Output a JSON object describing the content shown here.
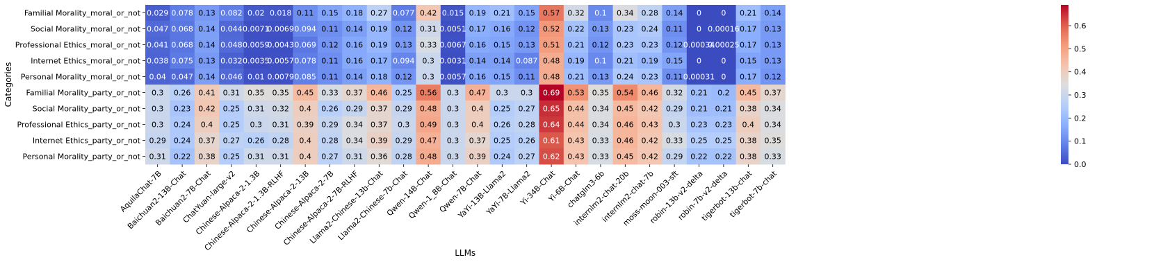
{
  "chart_data": {
    "type": "heatmap",
    "xlabel": "LLMs",
    "ylabel": "Categories",
    "x_categories": [
      "AquilaChat-7B",
      "Baichuan2-13B-Chat",
      "Baichuan2-7B-Chat",
      "ChatYuan-large-v2",
      "Chinese-Alpaca-2-1.3B",
      "Chinese-Alpaca-2-1.3B-RLHF",
      "Chinese-Alpaca-2-13B",
      "Chinese-Alpaca-2-7B",
      "Chinese-Alpaca-2-7B-RLHF",
      "Llama2-Chinese-13b-Chat",
      "Llama2-Chinese-7b-Chat",
      "Qwen-14B-Chat",
      "Qwen-1_8B-Chat",
      "Qwen-7B-Chat",
      "YaYi-13B-Llama2",
      "YaYi-7B-Llama2",
      "Yi-34B-Chat",
      "Yi-6B-Chat",
      "chatglm3-6b",
      "internlm2-chat-20b",
      "internlm2-chat-7b",
      "moss-moon-003-sft",
      "robin-13b-v2-delta",
      "robin-7b-v2-delta",
      "tigerbot-13b-chat",
      "tigerbot-7b-chat"
    ],
    "y_categories": [
      "Familial Morality_moral_or_not",
      "Social Morality_moral_or_not",
      "Professional Ethics_moral_or_not",
      "Internet Ethics_moral_or_not",
      "Personal Morality_moral_or_not",
      "Familial Morality_party_or_not",
      "Social Morality_party_or_not",
      "Professional Ethics_party_or_not",
      "Internet Ethics_party_or_not",
      "Personal Morality_party_or_not"
    ],
    "values": [
      [
        0.029,
        0.078,
        0.13,
        0.082,
        0.02,
        0.018,
        0.11,
        0.15,
        0.18,
        0.27,
        0.077,
        0.42,
        0.015,
        0.19,
        0.21,
        0.15,
        0.57,
        0.32,
        0.1,
        0.34,
        0.28,
        0.14,
        0,
        0,
        0.21,
        0.14
      ],
      [
        0.047,
        0.068,
        0.14,
        0.044,
        0.0071,
        0.0069,
        0.094,
        0.11,
        0.14,
        0.19,
        0.12,
        0.31,
        0.0051,
        0.17,
        0.16,
        0.12,
        0.52,
        0.22,
        0.13,
        0.23,
        0.24,
        0.11,
        0,
        0.00016,
        0.17,
        0.13
      ],
      [
        0.041,
        0.068,
        0.14,
        0.048,
        0.0059,
        0.0043,
        0.069,
        0.12,
        0.16,
        0.19,
        0.13,
        0.33,
        0.0067,
        0.16,
        0.15,
        0.13,
        0.51,
        0.21,
        0.12,
        0.23,
        0.23,
        0.12,
        0.00034,
        0.00025,
        0.17,
        0.13
      ],
      [
        0.038,
        0.075,
        0.13,
        0.032,
        0.0035,
        0.0057,
        0.078,
        0.11,
        0.16,
        0.17,
        0.094,
        0.3,
        0.0031,
        0.14,
        0.14,
        0.087,
        0.48,
        0.19,
        0.1,
        0.21,
        0.19,
        0.15,
        0,
        0,
        0.15,
        0.13
      ],
      [
        0.04,
        0.047,
        0.14,
        0.046,
        0.01,
        0.0079,
        0.085,
        0.11,
        0.14,
        0.18,
        0.12,
        0.3,
        0.0057,
        0.16,
        0.15,
        0.11,
        0.48,
        0.21,
        0.13,
        0.24,
        0.23,
        0.11,
        0.00031,
        0,
        0.17,
        0.12
      ],
      [
        0.3,
        0.26,
        0.41,
        0.31,
        0.35,
        0.35,
        0.45,
        0.33,
        0.37,
        0.46,
        0.25,
        0.56,
        0.3,
        0.47,
        0.3,
        0.3,
        0.69,
        0.53,
        0.35,
        0.54,
        0.46,
        0.32,
        0.21,
        0.2,
        0.45,
        0.37
      ],
      [
        0.3,
        0.23,
        0.42,
        0.25,
        0.31,
        0.32,
        0.4,
        0.26,
        0.29,
        0.37,
        0.29,
        0.48,
        0.3,
        0.4,
        0.25,
        0.27,
        0.65,
        0.44,
        0.34,
        0.45,
        0.42,
        0.29,
        0.21,
        0.21,
        0.38,
        0.34
      ],
      [
        0.3,
        0.24,
        0.4,
        0.25,
        0.3,
        0.31,
        0.39,
        0.29,
        0.34,
        0.37,
        0.3,
        0.49,
        0.3,
        0.4,
        0.26,
        0.28,
        0.64,
        0.44,
        0.34,
        0.46,
        0.43,
        0.3,
        0.23,
        0.23,
        0.4,
        0.34
      ],
      [
        0.29,
        0.24,
        0.37,
        0.27,
        0.26,
        0.28,
        0.4,
        0.28,
        0.34,
        0.39,
        0.29,
        0.47,
        0.3,
        0.37,
        0.25,
        0.26,
        0.61,
        0.43,
        0.33,
        0.46,
        0.42,
        0.33,
        0.25,
        0.25,
        0.38,
        0.35
      ],
      [
        0.31,
        0.22,
        0.38,
        0.25,
        0.31,
        0.31,
        0.4,
        0.27,
        0.31,
        0.36,
        0.28,
        0.48,
        0.3,
        0.39,
        0.24,
        0.27,
        0.62,
        0.43,
        0.33,
        0.45,
        0.42,
        0.29,
        0.22,
        0.22,
        0.38,
        0.33
      ]
    ],
    "value_labels": [
      [
        "0.029",
        "0.078",
        "0.13",
        "0.082",
        "0.02",
        "0.018",
        "0.11",
        "0.15",
        "0.18",
        "0.27",
        "0.077",
        "0.42",
        "0.015",
        "0.19",
        "0.21",
        "0.15",
        "0.57",
        "0.32",
        "0.1",
        "0.34",
        "0.28",
        "0.14",
        "0",
        "0",
        "0.21",
        "0.14"
      ],
      [
        "0.047",
        "0.068",
        "0.14",
        "0.044",
        "0.0071",
        "0.0069",
        "0.094",
        "0.11",
        "0.14",
        "0.19",
        "0.12",
        "0.31",
        "0.0051",
        "0.17",
        "0.16",
        "0.12",
        "0.52",
        "0.22",
        "0.13",
        "0.23",
        "0.24",
        "0.11",
        "0",
        "0.00016",
        "0.17",
        "0.13"
      ],
      [
        "0.041",
        "0.068",
        "0.14",
        "0.048",
        "0.0059",
        "0.0043",
        "0.069",
        "0.12",
        "0.16",
        "0.19",
        "0.13",
        "0.33",
        "0.0067",
        "0.16",
        "0.15",
        "0.13",
        "0.51",
        "0.21",
        "0.12",
        "0.23",
        "0.23",
        "0.12",
        "0.00034",
        "0.00025",
        "0.17",
        "0.13"
      ],
      [
        "0.038",
        "0.075",
        "0.13",
        "0.032",
        "0.0035",
        "0.0057",
        "0.078",
        "0.11",
        "0.16",
        "0.17",
        "0.094",
        "0.3",
        "0.0031",
        "0.14",
        "0.14",
        "0.087",
        "0.48",
        "0.19",
        "0.1",
        "0.21",
        "0.19",
        "0.15",
        "0",
        "0",
        "0.15",
        "0.13"
      ],
      [
        "0.04",
        "0.047",
        "0.14",
        "0.046",
        "0.01",
        "0.0079",
        "0.085",
        "0.11",
        "0.14",
        "0.18",
        "0.12",
        "0.3",
        "0.0057",
        "0.16",
        "0.15",
        "0.11",
        "0.48",
        "0.21",
        "0.13",
        "0.24",
        "0.23",
        "0.11",
        "0.00031",
        "0",
        "0.17",
        "0.12"
      ],
      [
        "0.3",
        "0.26",
        "0.41",
        "0.31",
        "0.35",
        "0.35",
        "0.45",
        "0.33",
        "0.37",
        "0.46",
        "0.25",
        "0.56",
        "0.3",
        "0.47",
        "0.3",
        "0.3",
        "0.69",
        "0.53",
        "0.35",
        "0.54",
        "0.46",
        "0.32",
        "0.21",
        "0.2",
        "0.45",
        "0.37"
      ],
      [
        "0.3",
        "0.23",
        "0.42",
        "0.25",
        "0.31",
        "0.32",
        "0.4",
        "0.26",
        "0.29",
        "0.37",
        "0.29",
        "0.48",
        "0.3",
        "0.4",
        "0.25",
        "0.27",
        "0.65",
        "0.44",
        "0.34",
        "0.45",
        "0.42",
        "0.29",
        "0.21",
        "0.21",
        "0.38",
        "0.34"
      ],
      [
        "0.3",
        "0.24",
        "0.4",
        "0.25",
        "0.3",
        "0.31",
        "0.39",
        "0.29",
        "0.34",
        "0.37",
        "0.3",
        "0.49",
        "0.3",
        "0.4",
        "0.26",
        "0.28",
        "0.64",
        "0.44",
        "0.34",
        "0.46",
        "0.43",
        "0.3",
        "0.23",
        "0.23",
        "0.4",
        "0.34"
      ],
      [
        "0.29",
        "0.24",
        "0.37",
        "0.27",
        "0.26",
        "0.28",
        "0.4",
        "0.28",
        "0.34",
        "0.39",
        "0.29",
        "0.47",
        "0.3",
        "0.37",
        "0.25",
        "0.26",
        "0.61",
        "0.43",
        "0.33",
        "0.46",
        "0.42",
        "0.33",
        "0.25",
        "0.25",
        "0.38",
        "0.35"
      ],
      [
        "0.31",
        "0.22",
        "0.38",
        "0.25",
        "0.31",
        "0.31",
        "0.4",
        "0.27",
        "0.31",
        "0.36",
        "0.28",
        "0.48",
        "0.3",
        "0.39",
        "0.24",
        "0.27",
        "0.62",
        "0.43",
        "0.33",
        "0.45",
        "0.42",
        "0.29",
        "0.22",
        "0.22",
        "0.38",
        "0.33"
      ]
    ],
    "colormap": "coolwarm",
    "vmin": 0.0,
    "vmax": 0.69,
    "colorbar": {
      "ticks": [
        0.0,
        0.1,
        0.2,
        0.3,
        0.4,
        0.5,
        0.6
      ],
      "tick_labels": [
        "0.0",
        "0.1",
        "0.2",
        "0.3",
        "0.4",
        "0.5",
        "0.6"
      ],
      "placement": "right"
    },
    "grid": false,
    "x_tick_rotation": "45deg, right-aligned"
  }
}
